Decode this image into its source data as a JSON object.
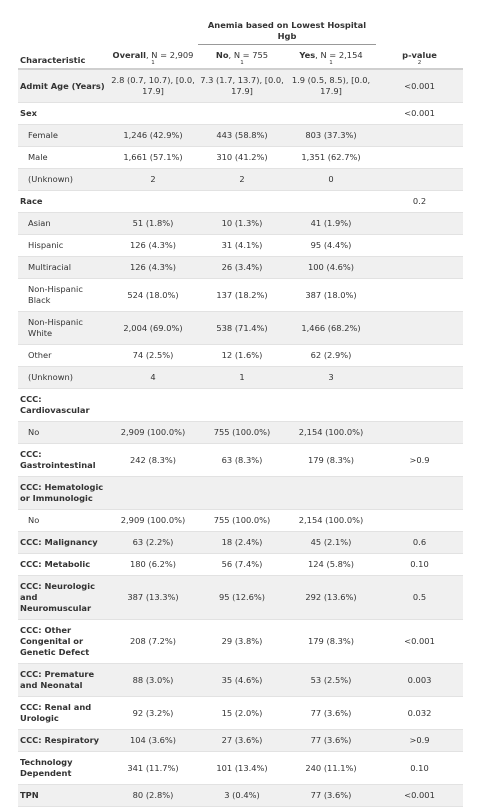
{
  "table": {
    "spanner": "Anemia based on Lowest Hospital Hgb",
    "columns": [
      {
        "bold": "Characteristic"
      },
      {
        "bold": "Overall",
        "rest": ", N = 2,909",
        "footnote": "1"
      },
      {
        "bold": "No",
        "rest": ", N = 755",
        "footnote": "1"
      },
      {
        "bold": "Yes",
        "rest": ", N = 2,154",
        "footnote": "1"
      },
      {
        "bold": "p-value",
        "footnote": "2"
      }
    ],
    "rows": [
      {
        "bold": true,
        "cells": [
          "Admit Age (Years)",
          "2.8 (0.7, 10.7), [0.0, 17.9]",
          "7.3 (1.7, 13.7), [0.0, 17.9]",
          "1.9 (0.5, 8.5), [0.0, 17.9]",
          "<0.001"
        ]
      },
      {
        "bold": true,
        "cells": [
          "Sex",
          null,
          null,
          null,
          "<0.001"
        ]
      },
      {
        "cells": [
          "Female",
          "1,246 (42.9%)",
          "443 (58.8%)",
          "803 (37.3%)",
          null
        ]
      },
      {
        "cells": [
          "Male",
          "1,661 (57.1%)",
          "310 (41.2%)",
          "1,351 (62.7%)",
          null
        ]
      },
      {
        "cells": [
          "(Unknown)",
          "2",
          "2",
          "0",
          null
        ]
      },
      {
        "bold": true,
        "cells": [
          "Race",
          null,
          null,
          null,
          "0.2"
        ]
      },
      {
        "cells": [
          "Asian",
          "51 (1.8%)",
          "10 (1.3%)",
          "41 (1.9%)",
          null
        ]
      },
      {
        "cells": [
          "Hispanic",
          "126 (4.3%)",
          "31 (4.1%)",
          "95 (4.4%)",
          null
        ]
      },
      {
        "cells": [
          "Multiracial",
          "126 (4.3%)",
          "26 (3.4%)",
          "100 (4.6%)",
          null
        ]
      },
      {
        "cells": [
          "Non-Hispanic Black",
          "524 (18.0%)",
          "137 (18.2%)",
          "387 (18.0%)",
          null
        ]
      },
      {
        "cells": [
          "Non-Hispanic White",
          "2,004 (69.0%)",
          "538 (71.4%)",
          "1,466 (68.2%)",
          null
        ]
      },
      {
        "cells": [
          "Other",
          "74 (2.5%)",
          "12 (1.6%)",
          "62 (2.9%)",
          null
        ]
      },
      {
        "cells": [
          "(Unknown)",
          "4",
          "1",
          "3",
          null
        ]
      },
      {
        "bold": true,
        "cells": [
          "CCC: Cardiovascular",
          null,
          null,
          null,
          null
        ]
      },
      {
        "cells": [
          "No",
          "2,909 (100.0%)",
          "755 (100.0%)",
          "2,154 (100.0%)",
          null
        ]
      },
      {
        "bold": true,
        "cells": [
          "CCC: Gastrointestinal",
          "242 (8.3%)",
          "63 (8.3%)",
          "179 (8.3%)",
          ">0.9"
        ]
      },
      {
        "bold": true,
        "cells": [
          "CCC: Hematologic or Immunologic",
          null,
          null,
          null,
          null
        ]
      },
      {
        "cells": [
          "No",
          "2,909 (100.0%)",
          "755 (100.0%)",
          "2,154 (100.0%)",
          null
        ]
      },
      {
        "bold": true,
        "cells": [
          "CCC: Malignancy",
          "63 (2.2%)",
          "18 (2.4%)",
          "45 (2.1%)",
          "0.6"
        ]
      },
      {
        "bold": true,
        "cells": [
          "CCC: Metabolic",
          "180 (6.2%)",
          "56 (7.4%)",
          "124 (5.8%)",
          "0.10"
        ]
      },
      {
        "bold": true,
        "cells": [
          "CCC: Neurologic and Neuromuscular",
          "387 (13.3%)",
          "95 (12.6%)",
          "292 (13.6%)",
          "0.5"
        ]
      },
      {
        "bold": true,
        "cells": [
          "CCC: Other Congenital or Genetic Defect",
          "208 (7.2%)",
          "29 (3.8%)",
          "179 (8.3%)",
          "<0.001"
        ]
      },
      {
        "bold": true,
        "cells": [
          "CCC: Premature and Neonatal",
          "88 (3.0%)",
          "35 (4.6%)",
          "53 (2.5%)",
          "0.003"
        ]
      },
      {
        "bold": true,
        "cells": [
          "CCC: Renal and Urologic",
          "92 (3.2%)",
          "15 (2.0%)",
          "77 (3.6%)",
          "0.032"
        ]
      },
      {
        "bold": true,
        "cells": [
          "CCC: Respiratory",
          "104 (3.6%)",
          "27 (3.6%)",
          "77 (3.6%)",
          ">0.9"
        ]
      },
      {
        "bold": true,
        "cells": [
          "Technology Dependent",
          "341 (11.7%)",
          "101 (13.4%)",
          "240 (11.1%)",
          "0.10"
        ]
      },
      {
        "bold": true,
        "cells": [
          "TPN",
          "80 (2.8%)",
          "3 (0.4%)",
          "77 (3.6%)",
          "<0.001"
        ]
      }
    ]
  }
}
